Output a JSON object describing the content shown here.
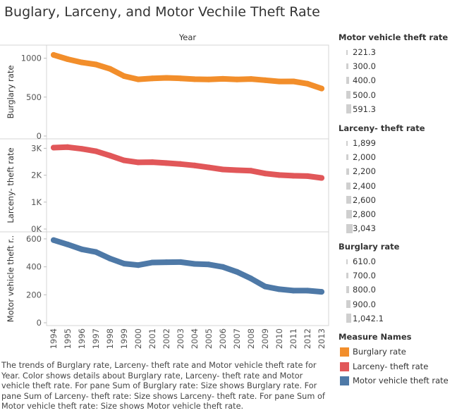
{
  "title": "Buglary, Larceny, and Motor Vechile Theft Rate",
  "chart_data": {
    "type": "line",
    "top_axis_label": "Year",
    "x": [
      "1994",
      "1995",
      "1996",
      "1997",
      "1998",
      "1999",
      "2000",
      "2001",
      "2002",
      "2003",
      "2004",
      "2005",
      "2006",
      "2007",
      "2008",
      "2009",
      "2010",
      "2011",
      "2012",
      "2013"
    ],
    "panes": [
      {
        "name": "Burglary rate",
        "ylabel": "Burglary rate",
        "color": "#f28e2b",
        "ylim": [
          0,
          1150
        ],
        "ticks": [
          0,
          500,
          1000
        ],
        "tick_labels": [
          "0",
          "500",
          "1000"
        ],
        "values": [
          1042.1,
          987,
          945,
          919,
          863,
          770,
          728,
          741,
          747,
          741,
          730,
          727,
          734,
          727,
          733,
          717,
          701,
          702,
          672,
          610
        ]
      },
      {
        "name": "Larceny- theft rate",
        "ylabel": "Larceny- theft rate",
        "color": "#e15759",
        "ylim": [
          0,
          3300
        ],
        "ticks": [
          0,
          1000,
          2000,
          3000
        ],
        "tick_labels": [
          "0K",
          "1K",
          "2K",
          "3K"
        ],
        "values": [
          3026,
          3043,
          2980,
          2891,
          2730,
          2550,
          2477,
          2486,
          2451,
          2416,
          2362,
          2288,
          2214,
          2186,
          2167,
          2064,
          2006,
          1980,
          1968,
          1899
        ]
      },
      {
        "name": "Motor vehicle theft rate",
        "ylabel": "Motor vehicle theft r..",
        "color": "#4e79a7",
        "ylim": [
          0,
          640
        ],
        "ticks": [
          0,
          200,
          400,
          600
        ],
        "tick_labels": [
          "0",
          "200",
          "400",
          "600"
        ],
        "values": [
          591.3,
          560,
          525,
          506,
          459,
          423,
          412,
          431,
          433,
          434,
          421,
          417,
          399,
          364,
          316,
          259,
          240,
          230,
          230,
          221.3
        ]
      }
    ],
    "size_legends": [
      {
        "title": "Motor vehicle theft rate",
        "items": [
          "221.3",
          "300.0",
          "400.0",
          "500.0",
          "591.3"
        ]
      },
      {
        "title": "Larceny- theft rate",
        "items": [
          "1,899",
          "2,000",
          "2,200",
          "2,400",
          "2,600",
          "2,800",
          "3,043"
        ]
      },
      {
        "title": "Burglary rate",
        "items": [
          "610.0",
          "700.0",
          "800.0",
          "900.0",
          "1,042.1"
        ]
      }
    ],
    "color_legend": {
      "title": "Measure Names",
      "items": [
        {
          "label": "Burglary rate",
          "color": "#f28e2b"
        },
        {
          "label": "Larceny- theft rate",
          "color": "#e15759"
        },
        {
          "label": "Motor vehicle theft rate",
          "color": "#4e79a7"
        }
      ]
    }
  },
  "caption": "The trends of Burglary rate, Larceny- theft rate and Motor vehicle theft rate for Year.  Color shows details about Burglary rate, Larceny- theft rate and Motor vehicle theft rate.  For pane Sum of Burglary rate:  Size shows Burglary rate.  For pane Sum of Larceny- theft rate:  Size shows Larceny- theft rate.  For pane Sum of Motor vehicle theft rate:  Size shows Motor vehicle theft rate."
}
